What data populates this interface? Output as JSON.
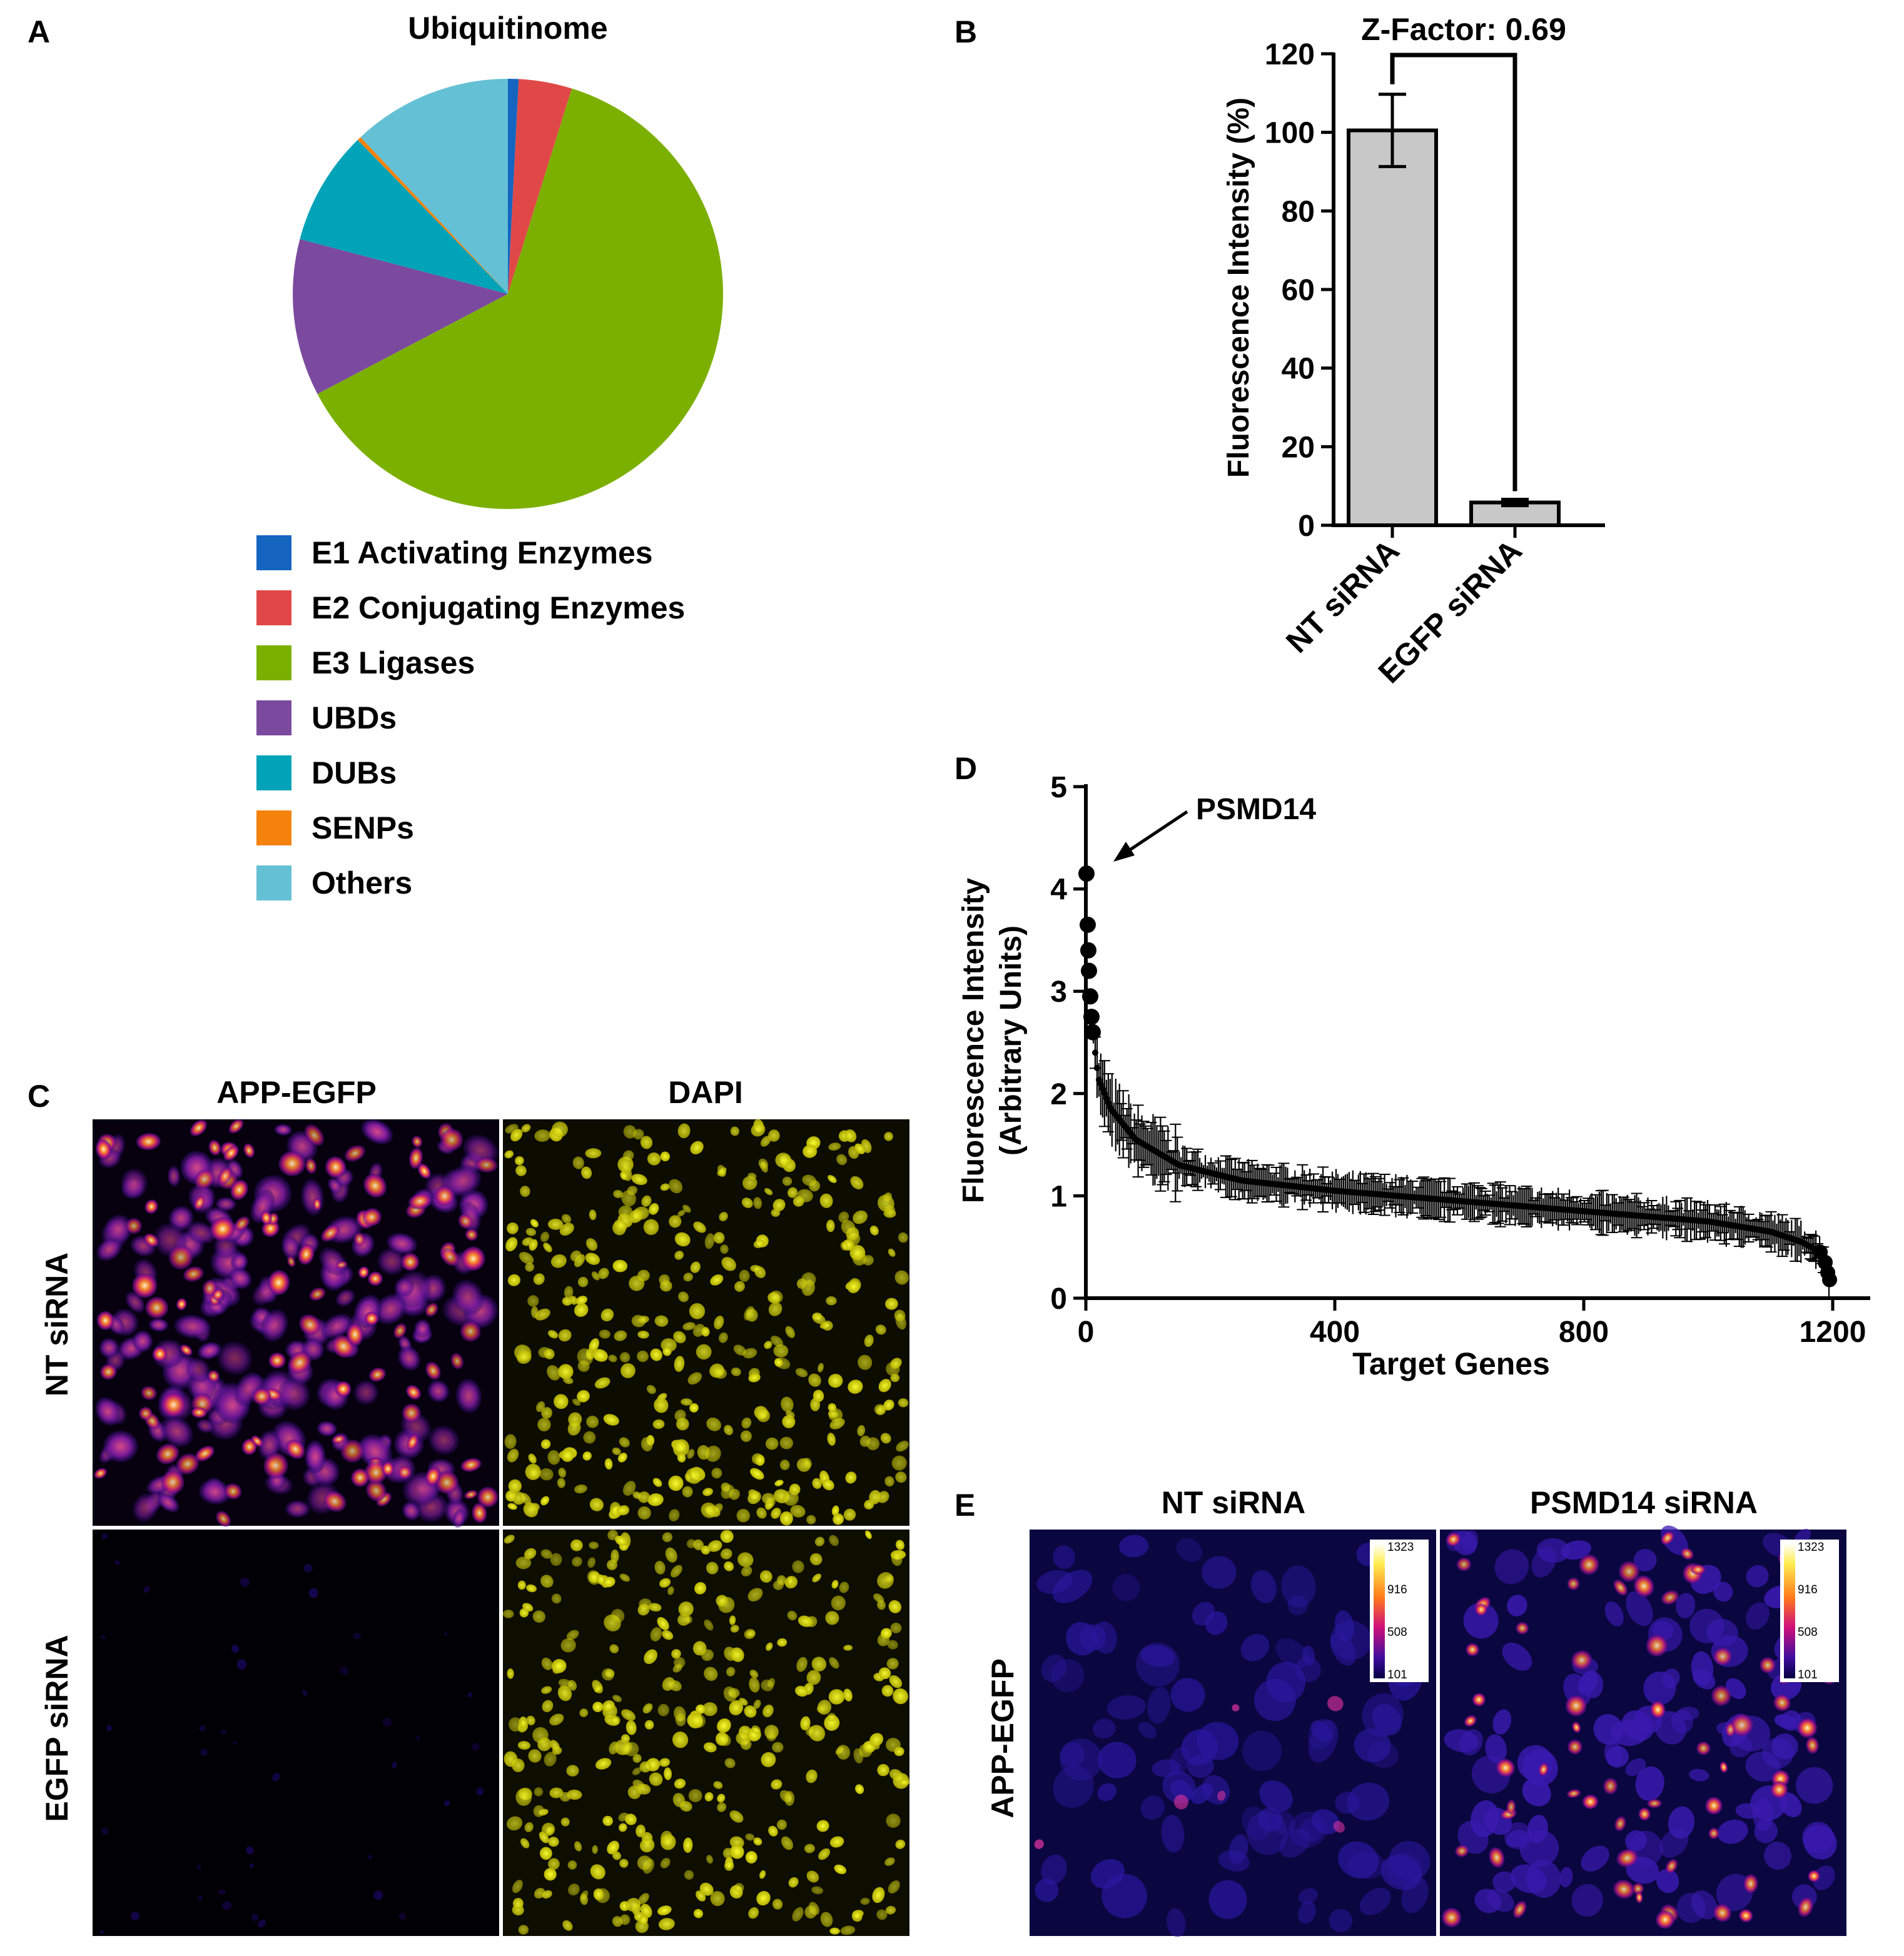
{
  "colors": {
    "e1": "#1565c0",
    "e2": "#e04848",
    "e3": "#7cb000",
    "ubd": "#7b4a9e",
    "dub": "#00a3b8",
    "senp": "#f5820d",
    "others": "#64c0d4",
    "bar": "#c8c8c8",
    "axis": "#000000"
  },
  "panels": {
    "a": {
      "label": "A"
    },
    "b": {
      "label": "B"
    },
    "c": {
      "label": "C"
    },
    "d": {
      "label": "D"
    },
    "e": {
      "label": "E"
    }
  },
  "panel_c": {
    "col_titles": [
      "APP-EGFP",
      "DAPI"
    ],
    "row_titles": [
      "NT siRNA",
      "EGFP siRNA"
    ]
  },
  "panel_e": {
    "col_titles": [
      "NT siRNA",
      "PSMD14 siRNA"
    ],
    "row_title": "APP-EGFP",
    "scale_ticks": [
      "1323",
      "916",
      "508",
      "101"
    ]
  },
  "chart_data": [
    {
      "id": "A",
      "type": "pie",
      "title": "Ubiquitinome",
      "slices": [
        {
          "label": "E1 Activating Enzymes",
          "value": 0.8,
          "color_key": "e1"
        },
        {
          "label": "E2 Conjugating Enzymes",
          "value": 4.0,
          "color_key": "e2"
        },
        {
          "label": "E3 Ligases",
          "value": 62.5,
          "color_key": "e3"
        },
        {
          "label": "UBDs",
          "value": 11.8,
          "color_key": "ubd"
        },
        {
          "label": "DUBs",
          "value": 8.6,
          "color_key": "dub"
        },
        {
          "label": "SENPs",
          "value": 0.3,
          "color_key": "senp"
        },
        {
          "label": "Others",
          "value": 12.0,
          "color_key": "others"
        }
      ],
      "legend": "bottom"
    },
    {
      "id": "B",
      "type": "bar",
      "categories": [
        "NT siRNA",
        "EGFP siRNA"
      ],
      "values": [
        100.5,
        5.8
      ],
      "errors": [
        9.2,
        0.8
      ],
      "ylabel": "Fluorescence Intensity (%)",
      "ylim": [
        0,
        120
      ],
      "yticks": [
        0,
        20,
        40,
        60,
        80,
        100,
        120
      ],
      "annotation": "Z-Factor: 0.69"
    },
    {
      "id": "D",
      "type": "scatter",
      "xlabel": "Target Genes",
      "ylabel_lines": [
        "Fluorescence Intensity",
        "(Arbitrary Units)"
      ],
      "xlim": [
        0,
        1200
      ],
      "ylim": [
        0,
        5
      ],
      "xticks": [
        0,
        400,
        800,
        1200
      ],
      "yticks": [
        0,
        1,
        2,
        3,
        4,
        5
      ],
      "n_genes": 1195,
      "highlight_points": [
        {
          "x": 1,
          "y": 4.15
        },
        {
          "x": 3,
          "y": 3.65
        },
        {
          "x": 4,
          "y": 3.4
        },
        {
          "x": 5,
          "y": 3.2
        },
        {
          "x": 7,
          "y": 2.95
        },
        {
          "x": 9,
          "y": 2.75
        },
        {
          "x": 11,
          "y": 2.6
        }
      ],
      "curve_anchors": [
        {
          "x": 12,
          "y": 2.55
        },
        {
          "x": 20,
          "y": 2.15
        },
        {
          "x": 40,
          "y": 1.85
        },
        {
          "x": 80,
          "y": 1.55
        },
        {
          "x": 150,
          "y": 1.3
        },
        {
          "x": 250,
          "y": 1.15
        },
        {
          "x": 400,
          "y": 1.05
        },
        {
          "x": 600,
          "y": 0.95
        },
        {
          "x": 800,
          "y": 0.85
        },
        {
          "x": 1000,
          "y": 0.75
        },
        {
          "x": 1100,
          "y": 0.65
        },
        {
          "x": 1150,
          "y": 0.55
        },
        {
          "x": 1180,
          "y": 0.45
        },
        {
          "x": 1190,
          "y": 0.3
        },
        {
          "x": 1195,
          "y": 0.18
        }
      ],
      "annotation": "PSMD14"
    }
  ]
}
